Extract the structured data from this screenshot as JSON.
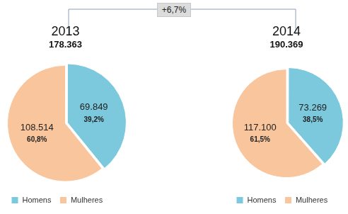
{
  "annotation": "+6,7%",
  "chart_data": [
    {
      "type": "pie",
      "title": "2013",
      "subtitle": "178.363",
      "categories": [
        "Homens",
        "Mulheres"
      ],
      "values": [
        69849,
        108514
      ],
      "value_labels": [
        "69.849",
        "108.514"
      ],
      "percentages": [
        39.2,
        60.8
      ],
      "percentage_labels": [
        "39,2%",
        "60,8%"
      ],
      "colors": [
        "#7cc8dc",
        "#f8c59d"
      ],
      "data_labels": true,
      "legend": "bottom-left"
    },
    {
      "type": "pie",
      "title": "2014",
      "subtitle": "190.369",
      "categories": [
        "Homens",
        "Mulheres"
      ],
      "values": [
        73269,
        117100
      ],
      "value_labels": [
        "73.269",
        "117.100"
      ],
      "percentages": [
        38.5,
        61.5
      ],
      "percentage_labels": [
        "38,5%",
        "61,5%"
      ],
      "colors": [
        "#7cc8dc",
        "#f8c59d"
      ],
      "data_labels": true,
      "legend": "bottom-left"
    }
  ]
}
